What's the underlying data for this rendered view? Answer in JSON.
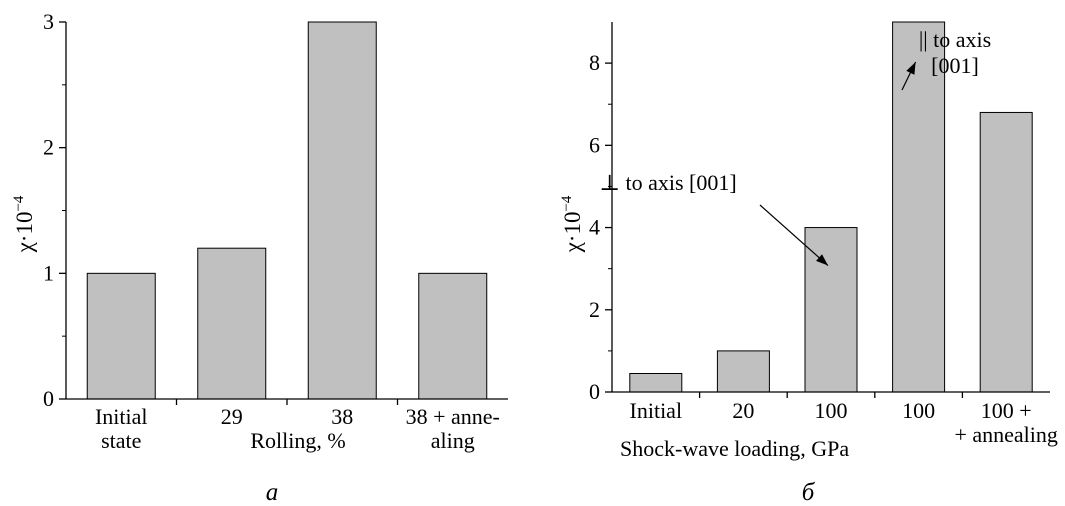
{
  "chart_data": [
    {
      "type": "bar",
      "panel_label": "а",
      "ylabel_base": "χ·10",
      "ylabel_exp": "−4",
      "xlabel": "Rolling, %",
      "ylim": [
        0,
        3
      ],
      "yticks": [
        0,
        1,
        2,
        3
      ],
      "grid": false,
      "categories": [
        {
          "lines": [
            "Initial",
            "state"
          ]
        },
        {
          "lines": [
            "29"
          ]
        },
        {
          "lines": [
            "38"
          ]
        },
        {
          "lines": [
            "38 + anne-",
            "aling"
          ]
        }
      ],
      "values": [
        1.0,
        1.2,
        3.0,
        1.0
      ],
      "bar_color": "#c0c0c0",
      "annotations": []
    },
    {
      "type": "bar",
      "panel_label": "б",
      "ylabel_base": "χ·10",
      "ylabel_exp": "−4",
      "xlabel": "Shock-wave loading, GPa",
      "ylim": [
        0,
        9
      ],
      "yticks": [
        0,
        2,
        4,
        6,
        8
      ],
      "grid": false,
      "categories": [
        {
          "lines": [
            "Initial"
          ]
        },
        {
          "lines": [
            "20"
          ]
        },
        {
          "lines": [
            "100"
          ]
        },
        {
          "lines": [
            "100"
          ]
        },
        {
          "lines": [
            "100 +",
            "+ annealing"
          ]
        }
      ],
      "values": [
        0.45,
        1.0,
        4.0,
        9.0,
        6.8
      ],
      "bar_color": "#c0c0c0",
      "annotations": [
        {
          "lines": [
            "⊥ to axis [001]"
          ],
          "bar_index": 2
        },
        {
          "lines": [
            "|| to axis",
            "[001]"
          ],
          "bar_index": 3
        }
      ]
    }
  ]
}
